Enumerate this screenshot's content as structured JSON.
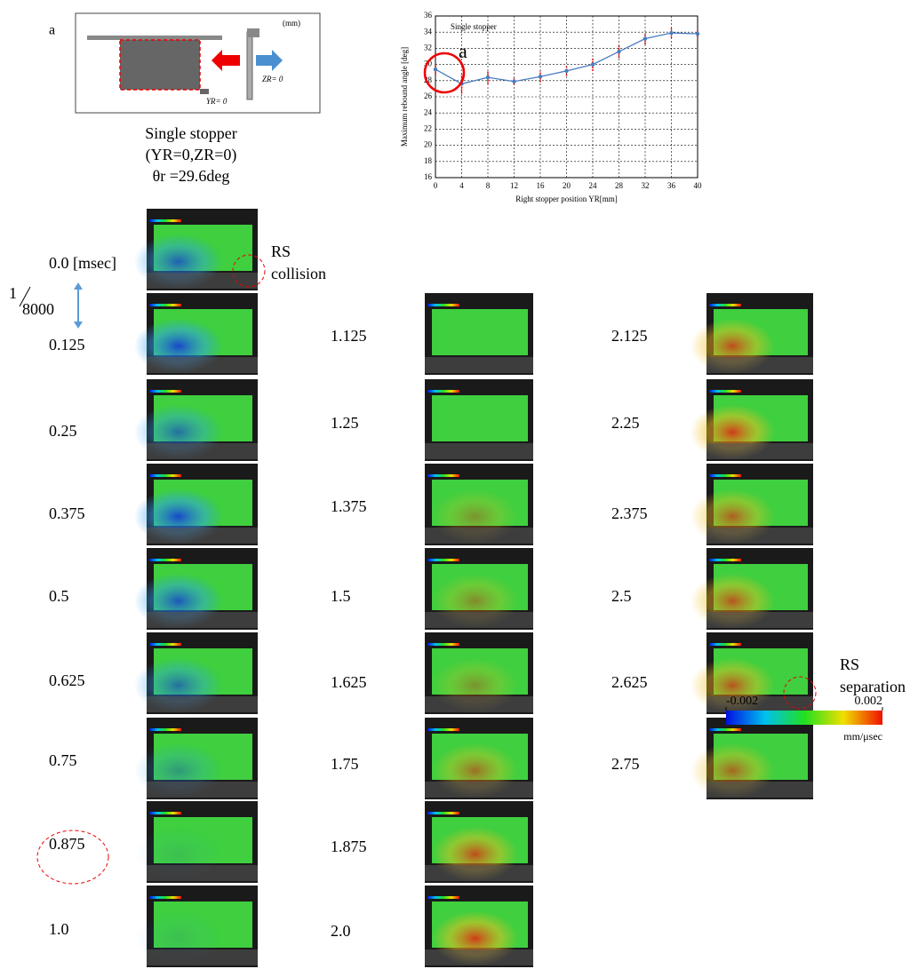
{
  "panel_a": {
    "label": "a",
    "unit": "(mm)",
    "z_label": "ZR= 0",
    "y_label": "YR= 0",
    "caption": [
      "Single stopper",
      "(YR=0,ZR=0)",
      "θr =29.6deg"
    ]
  },
  "chart_data": {
    "type": "line",
    "legend": "Single stopper",
    "annotation": "a",
    "xlabel": "Right stopper position YR[mm]",
    "ylabel": "Maximum rebound angle [deg]",
    "x": [
      0,
      4,
      8,
      12,
      16,
      20,
      24,
      28,
      32,
      36,
      40
    ],
    "series": [
      {
        "name": "Single stopper",
        "color": "#4a7cc0",
        "values": [
          29.4,
          27.6,
          28.4,
          27.9,
          28.5,
          29.2,
          30.0,
          31.6,
          33.2,
          33.9,
          33.8
        ],
        "errors": [
          0.6,
          1.2,
          0.8,
          0.4,
          0.7,
          0.6,
          0.8,
          0.8,
          0.7,
          0.6,
          0.4
        ]
      }
    ],
    "xlim": [
      0,
      40
    ],
    "xticks": [
      0,
      4,
      8,
      12,
      16,
      20,
      24,
      28,
      32,
      36,
      40
    ],
    "ylim": [
      16,
      36
    ],
    "yticks": [
      16,
      18,
      20,
      22,
      24,
      26,
      28,
      30,
      32,
      34,
      36
    ],
    "grid": true
  },
  "frames": {
    "columns": [
      [
        "0.0 [msec]",
        "0.125",
        "0.25",
        "0.375",
        "0.5",
        "0.625",
        "0.75",
        "0.875",
        "1.0"
      ],
      [
        "1.125",
        "1.25",
        "1.375",
        "1.5",
        "1.625",
        "1.75",
        "1.875",
        "2.0"
      ],
      [
        "2.125",
        "2.25",
        "2.375",
        "2.5",
        "2.625",
        "2.75"
      ]
    ],
    "interval": {
      "num": "1",
      "den": "8000"
    },
    "collision": [
      "RS",
      "collision"
    ],
    "separation": [
      "RS",
      "separation"
    ]
  },
  "colorbar": {
    "ticks": [
      -0.002,
      0.002
    ],
    "unit": "mm/μsec"
  }
}
